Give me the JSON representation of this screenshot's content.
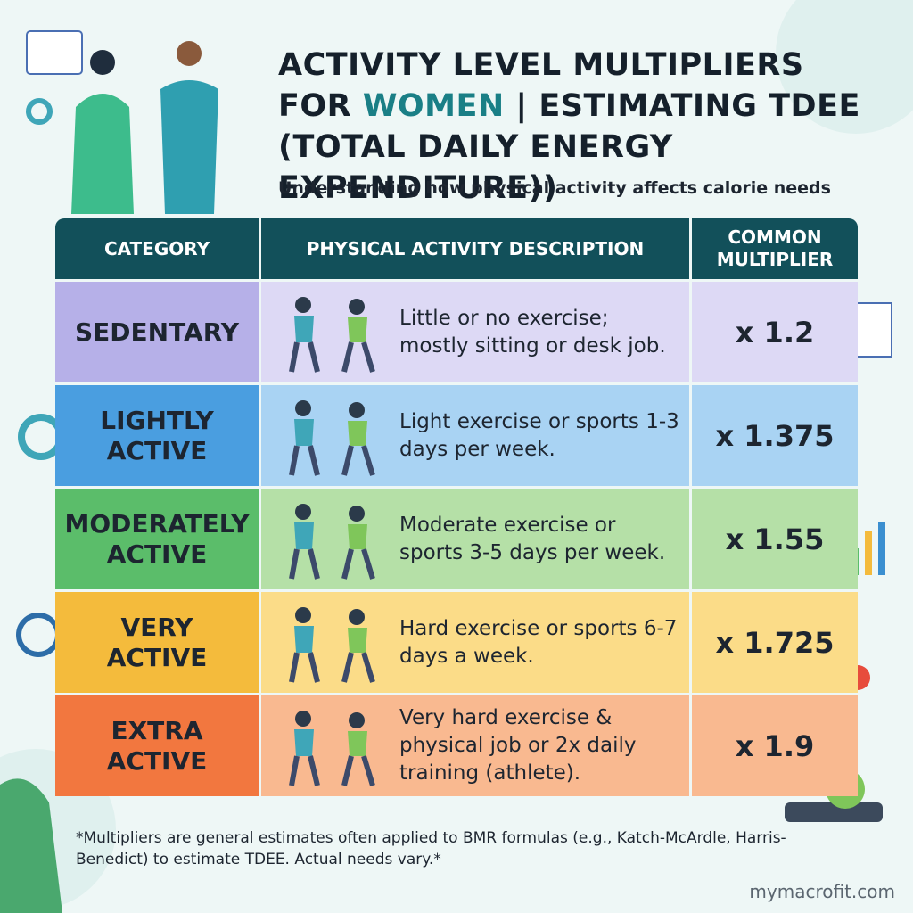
{
  "header": {
    "title_line1": "ACTIVITY LEVEL MULTIPLIERS",
    "title_line2_start": "FOR",
    "title_highlight": "WOMEN",
    "title_line2_end": "| ESTIMATING TDEE",
    "title_line3": "(TOTAL DAILY ENERGY EXPENDITURE))",
    "subtitle": "Understanding how physical activity affects calorie needs"
  },
  "table": {
    "columns": [
      "CATEGORY",
      "PHYSICAL ACTIVITY DESCRIPTION",
      "COMMON MULTIPLIER"
    ],
    "rows": [
      [
        "SEDENTARY",
        "Little or no exercise; mostly sitting or desk job.",
        "x 1.2"
      ],
      [
        "LIGHTLY ACTIVE",
        "Light exercise or sports 1-3 days per week.",
        "x 1.375"
      ],
      [
        "MODERATELY ACTIVE",
        "Moderate exercise or sports 3-5 days per week.",
        "x 1.55"
      ],
      [
        "VERY ACTIVE",
        "Hard exercise or sports 6-7 days a week.",
        "x 1.725"
      ],
      [
        "EXTRA ACTIVE",
        "Very hard exercise & physical job or 2x daily training (athlete).",
        "x 1.9"
      ]
    ]
  },
  "footnote": "*Multipliers are general estimates often applied to BMR formulas (e.g., Katch-McArdle, Harris-Benedict) to estimate TDEE. Actual needs vary.*",
  "website": "mymacrofit.com"
}
